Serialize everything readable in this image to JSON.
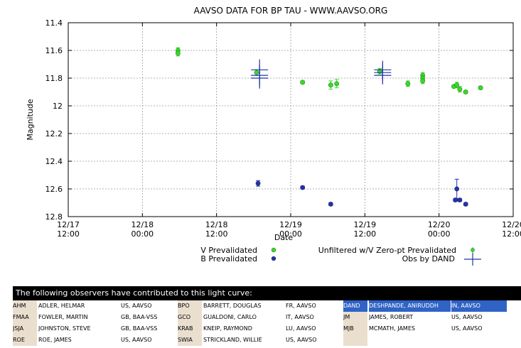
{
  "chart_data": {
    "type": "scatter",
    "title": "AAVSO DATA FOR BP TAU - WWW.AAVSO.ORG",
    "xlabel": "Date",
    "ylabel": "Magnitude",
    "x_unit": "days (Dec 17 00:00 = 0)",
    "xlim": [
      0.5,
      3.5
    ],
    "ylim": [
      11.4,
      12.8
    ],
    "y_inverted": true,
    "grid": true,
    "x_ticks": [
      {
        "v": 0.5,
        "line1": "12/17",
        "line2": "12:00"
      },
      {
        "v": 1.0,
        "line1": "12/18",
        "line2": "00:00"
      },
      {
        "v": 1.5,
        "line1": "12/18",
        "line2": "12:00"
      },
      {
        "v": 2.0,
        "line1": "12/19",
        "line2": "00:00"
      },
      {
        "v": 2.5,
        "line1": "12/19",
        "line2": "12:00"
      },
      {
        "v": 3.0,
        "line1": "12/20",
        "line2": "00:00"
      },
      {
        "v": 3.5,
        "line1": "12/20",
        "line2": "12:00"
      }
    ],
    "y_ticks": [
      "11.4",
      "11.6",
      "11.8",
      "12",
      "12.2",
      "12.4",
      "12.6",
      "12.8"
    ],
    "series": [
      {
        "name": "V Prevalidated",
        "marker": "circle",
        "color": "#33dd22",
        "points": [
          {
            "x": 1.24,
            "y": 11.6,
            "err": 0.02
          },
          {
            "x": 1.24,
            "y": 11.62,
            "err": 0.02
          },
          {
            "x": 1.77,
            "y": 11.76,
            "err": 0.02
          },
          {
            "x": 2.08,
            "y": 11.83,
            "err": 0.01
          },
          {
            "x": 2.27,
            "y": 11.85,
            "err": 0.03
          },
          {
            "x": 2.31,
            "y": 11.84,
            "err": 0.03
          },
          {
            "x": 2.6,
            "y": 11.75,
            "err": 0.02
          },
          {
            "x": 2.79,
            "y": 11.84,
            "err": 0.02
          },
          {
            "x": 2.89,
            "y": 11.78,
            "err": 0.02
          },
          {
            "x": 2.89,
            "y": 11.8,
            "err": 0.02
          },
          {
            "x": 2.89,
            "y": 11.82,
            "err": 0.02
          },
          {
            "x": 3.1,
            "y": 11.86,
            "err": 0.01
          },
          {
            "x": 3.12,
            "y": 11.85,
            "err": 0.02
          },
          {
            "x": 3.14,
            "y": 11.88,
            "err": 0.02
          },
          {
            "x": 3.18,
            "y": 11.9,
            "err": 0.01
          },
          {
            "x": 3.28,
            "y": 11.87,
            "err": 0.01
          }
        ]
      },
      {
        "name": "B Prevalidated",
        "marker": "circle",
        "color": "#2233aa",
        "points": [
          {
            "x": 1.78,
            "y": 12.56,
            "err": 0.02
          },
          {
            "x": 2.08,
            "y": 12.59,
            "err": 0.01
          },
          {
            "x": 2.27,
            "y": 12.71,
            "err": 0.01
          },
          {
            "x": 3.11,
            "y": 12.68,
            "err": 0.01
          },
          {
            "x": 3.12,
            "y": 12.6,
            "err": 0.07
          },
          {
            "x": 3.14,
            "y": 12.68,
            "err": 0.01
          },
          {
            "x": 3.18,
            "y": 12.71,
            "err": 0.01
          }
        ]
      },
      {
        "name": "Unfiltered w/V Zero-pt Prevalidated",
        "marker": "circle-small",
        "color": "#33dd22",
        "points": []
      },
      {
        "name": "Obs by DAND",
        "marker": "cross",
        "color": "#2233aa",
        "points": [
          {
            "x": 1.79,
            "y": 11.74,
            "err": 0.06
          },
          {
            "x": 1.79,
            "y": 11.78,
            "err": 0.06
          },
          {
            "x": 1.79,
            "y": 11.8,
            "err": 0.06
          },
          {
            "x": 2.62,
            "y": 11.74,
            "err": 0.05
          },
          {
            "x": 2.62,
            "y": 11.76,
            "err": 0.05
          },
          {
            "x": 2.62,
            "y": 11.78,
            "err": 0.05
          }
        ]
      }
    ],
    "legend": {
      "placement": "bottom",
      "entries": [
        "V Prevalidated",
        "B Prevalidated",
        "Unfiltered w/V Zero-pt Prevalidated",
        "Obs by DAND"
      ]
    }
  },
  "observers": {
    "header": "The following observers have contributed to this light curve:",
    "highlight_code": "DAND",
    "rows": [
      [
        {
          "code": "AHM",
          "name": "ADLER, HELMAR",
          "org": "US, AAVSO"
        },
        {
          "code": "BPO",
          "name": "BARRETT, DOUGLAS",
          "org": "FR, AAVSO"
        },
        {
          "code": "DAND",
          "name": "DESHPANDE, ANIRUDDH",
          "org": "IN, AAVSO"
        }
      ],
      [
        {
          "code": "FMAA",
          "name": "FOWLER, MARTIN",
          "org": "GB, BAA-VSS"
        },
        {
          "code": "GCO",
          "name": "GUALDONI, CARLO",
          "org": "IT, AAVSO"
        },
        {
          "code": "JM",
          "name": "JAMES, ROBERT",
          "org": "US, AAVSO"
        }
      ],
      [
        {
          "code": "JSJA",
          "name": "JOHNSTON, STEVE",
          "org": "GB, BAA-VSS"
        },
        {
          "code": "KRAB",
          "name": "KNEIP, RAYMOND",
          "org": "LU, AAVSO"
        },
        {
          "code": "MJB",
          "name": "MCMATH, JAMES",
          "org": "US, AAVSO"
        }
      ],
      [
        {
          "code": "ROE",
          "name": "ROE, JAMES",
          "org": "US, AAVSO"
        },
        {
          "code": "SWIA",
          "name": "STRICKLAND, WILLIE",
          "org": "US, AAVSO"
        },
        {
          "code": "",
          "name": "",
          "org": ""
        }
      ]
    ]
  }
}
